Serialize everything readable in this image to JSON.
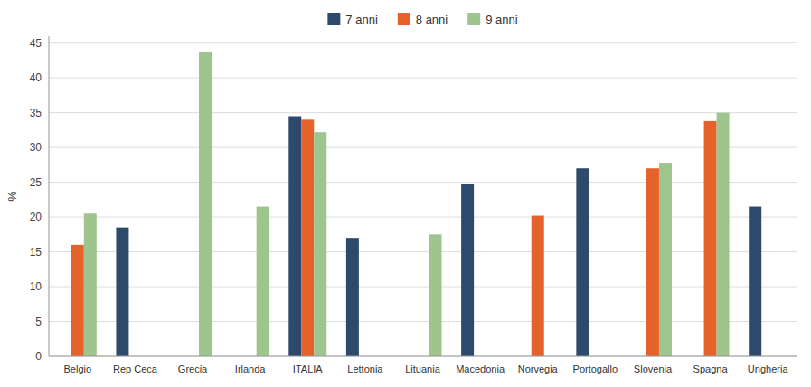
{
  "chart_data": {
    "type": "bar",
    "categories": [
      "Belgio",
      "Rep Ceca",
      "Grecia",
      "Irlanda",
      "ITALIA",
      "Lettonia",
      "Lituania",
      "Macedonia",
      "Norvegia",
      "Portogallo",
      "Slovenia",
      "Spagna",
      "Ungheria"
    ],
    "series": [
      {
        "name": "7 anni",
        "color": "#2E4A6B",
        "values": [
          null,
          18.5,
          null,
          null,
          34.5,
          17.0,
          null,
          24.8,
          null,
          27.0,
          null,
          null,
          21.5
        ]
      },
      {
        "name": "8 anni",
        "color": "#E5622A",
        "values": [
          16.0,
          null,
          null,
          null,
          34.0,
          null,
          null,
          null,
          20.2,
          null,
          27.0,
          33.8,
          null
        ]
      },
      {
        "name": "9 anni",
        "color": "#9DC58D",
        "values": [
          20.5,
          null,
          43.8,
          21.5,
          32.2,
          null,
          17.5,
          null,
          null,
          null,
          27.8,
          35.0,
          null
        ]
      }
    ],
    "y_label": "%",
    "ylim": [
      0,
      46
    ],
    "yticks": [
      0,
      5,
      10,
      15,
      20,
      25,
      30,
      35,
      40,
      45
    ],
    "grid": true,
    "legend": "top"
  }
}
